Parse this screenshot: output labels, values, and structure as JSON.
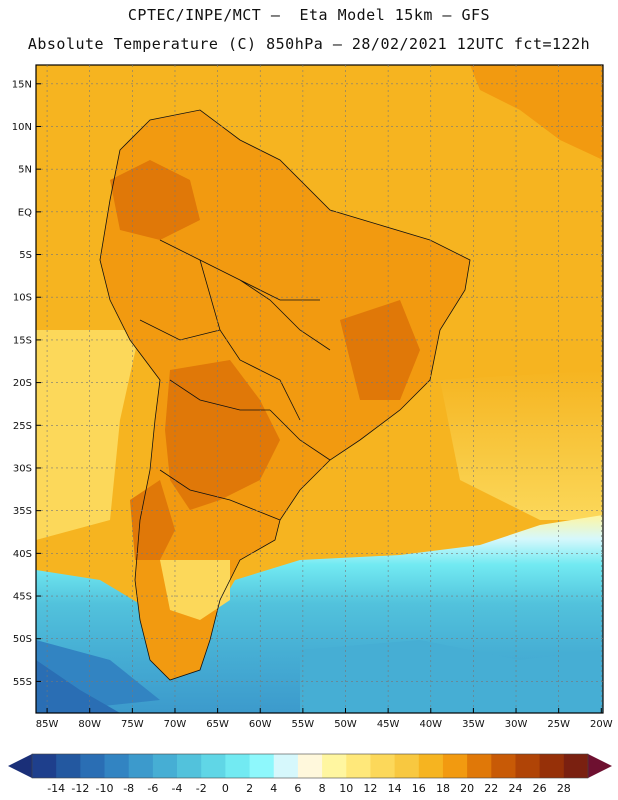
{
  "header": {
    "line1": "CPTEC/INPE/MCT –  Eta Model 15km – GFS",
    "line2": "Absolute Temperature (C) 850hPa – 28/02/2021 12UTC fct=122h"
  },
  "axes": {
    "lat_labels": [
      "15N",
      "10N",
      "5N",
      "EQ",
      "5S",
      "10S",
      "15S",
      "20S",
      "25S",
      "30S",
      "35S",
      "40S",
      "45S",
      "50S",
      "55S"
    ],
    "lat_values": [
      15,
      10,
      5,
      0,
      -5,
      -10,
      -15,
      -20,
      -25,
      -30,
      -35,
      -40,
      -45,
      -50,
      -55
    ],
    "lon_labels": [
      "85W",
      "80W",
      "75W",
      "70W",
      "65W",
      "60W",
      "55W",
      "50W",
      "45W",
      "40W",
      "35W",
      "30W",
      "25W",
      "20W"
    ],
    "lon_values": [
      -85,
      -80,
      -75,
      -70,
      -65,
      -60,
      -55,
      -50,
      -45,
      -40,
      -35,
      -30,
      -25,
      -20
    ]
  },
  "colorbar": {
    "labels": [
      "-14",
      "-12",
      "-10",
      "-8",
      "-6",
      "-4",
      "-2",
      "0",
      "2",
      "4",
      "6",
      "8",
      "10",
      "12",
      "14",
      "16",
      "18",
      "20",
      "22",
      "24",
      "26",
      "28"
    ],
    "colors": [
      "#1e3f8c",
      "#2358a0",
      "#2a6eb4",
      "#3284c2",
      "#3c9acc",
      "#46aed4",
      "#52c2dc",
      "#60d6e6",
      "#72eaf2",
      "#8ef8fc",
      "#d6f8fc",
      "#fff8dc",
      "#fff6a0",
      "#ffe87a",
      "#fcd85a",
      "#f8c840",
      "#f6b420",
      "#f29a10",
      "#e07808",
      "#c85a06",
      "#b04406",
      "#963008",
      "#7a2010"
    ],
    "low_color": "#1a2f78",
    "high_color": "#6e1030"
  },
  "map": {
    "ocean_warm": "#f6b420",
    "land_color": "#f29a10",
    "land_hot": "#e07808",
    "boundary_color": "#111111"
  }
}
